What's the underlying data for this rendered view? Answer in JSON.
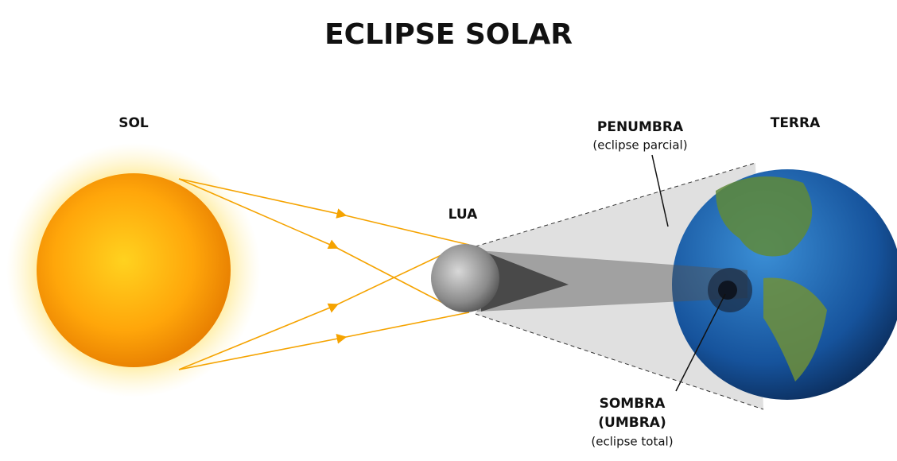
{
  "title": "ECLIPSE SOLAR",
  "sun": {
    "label": "SOL"
  },
  "moon": {
    "label": "LUA"
  },
  "earth": {
    "label": "TERRA"
  },
  "penumbra": {
    "label": "PENUMBRA",
    "note": "(eclipse parcial)"
  },
  "umbra": {
    "label": "SOMBRA",
    "label2": "(UMBRA)",
    "note": "(eclipse total)"
  }
}
